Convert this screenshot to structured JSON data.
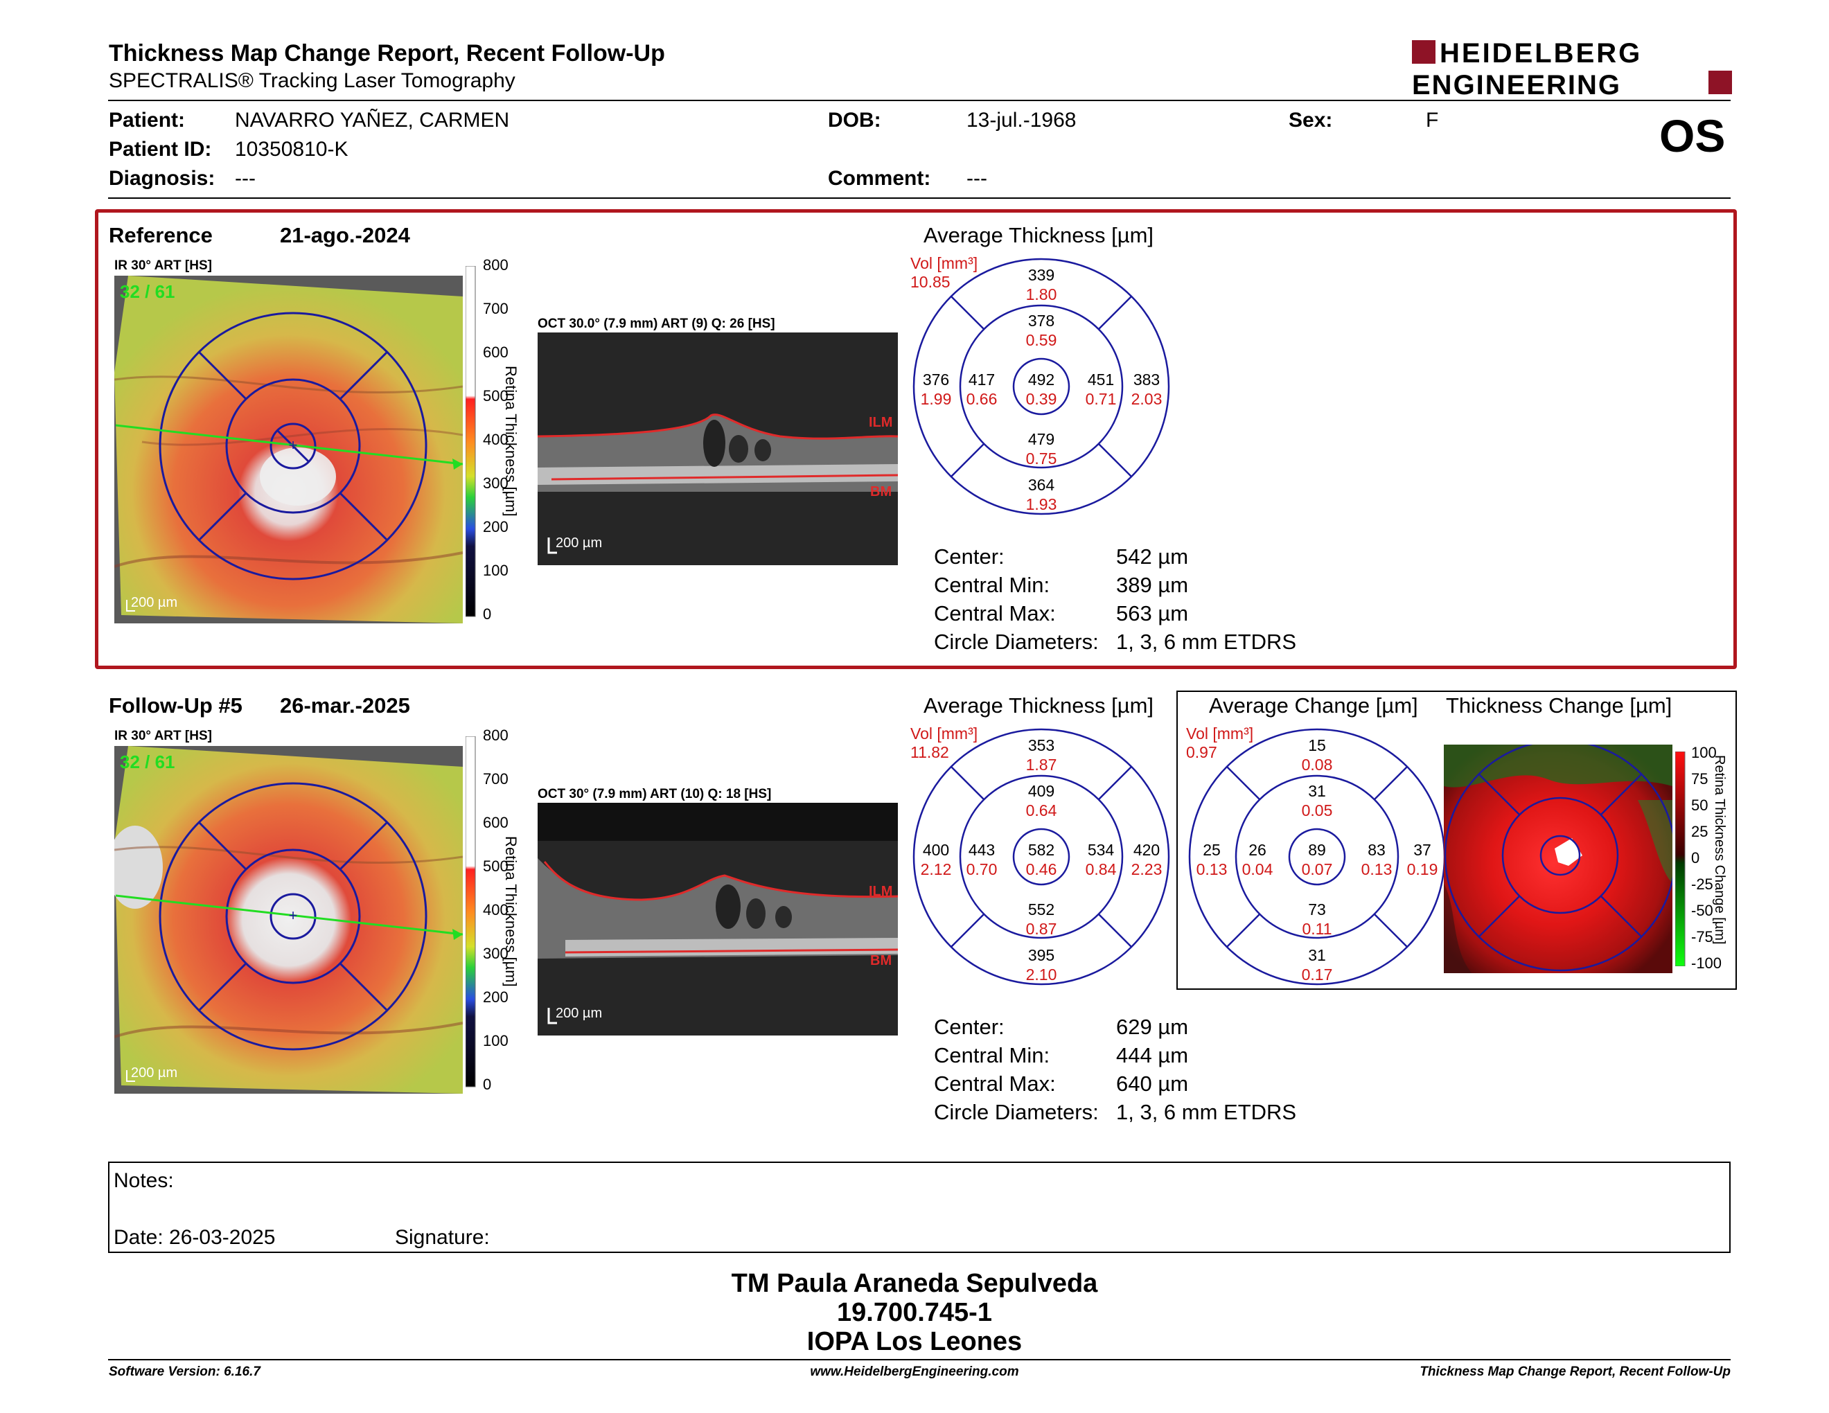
{
  "header": {
    "title": "Thickness Map Change Report, Recent Follow-Up",
    "subtitle": "SPECTRALIS® Tracking Laser Tomography",
    "logo_line1": "HEIDELBERG",
    "logo_line2": "ENGINEERING",
    "eye": "OS"
  },
  "patient": {
    "patient_label": "Patient:",
    "patient_value": "NAVARRO YAÑEZ, CARMEN",
    "id_label": "Patient ID:",
    "id_value": "10350810-K",
    "diagnosis_label": "Diagnosis:",
    "diagnosis_value": "---",
    "dob_label": "DOB:",
    "dob_value": "13-jul.-1968",
    "comment_label": "Comment:",
    "comment_value": "---",
    "sex_label": "Sex:",
    "sex_value": "F"
  },
  "reference": {
    "title": "Reference",
    "date": "21-ago.-2024",
    "ir_label": "IR 30° ART [HS]",
    "counter": "32 / 61",
    "scale": "200 µm",
    "oct_label": "OCT 30.0° (7.9 mm) ART (9) Q: 26 [HS]",
    "oct_scale": "200 µm",
    "ilm": "ILM",
    "bm": "BM",
    "grid_title": "Average Thickness [µm]",
    "vol_label": "Vol [mm³]",
    "vol_value": "10.85",
    "grid": {
      "center": [
        "492",
        "0.39"
      ],
      "inner_sup": [
        "378",
        "0.59"
      ],
      "inner_inf": [
        "479",
        "0.75"
      ],
      "inner_left": [
        "417",
        "0.66"
      ],
      "inner_right": [
        "451",
        "0.71"
      ],
      "outer_sup": [
        "339",
        "1.80"
      ],
      "outer_inf": [
        "364",
        "1.93"
      ],
      "outer_left": [
        "376",
        "1.99"
      ],
      "outer_right": [
        "383",
        "2.03"
      ]
    },
    "stats": [
      {
        "label": "Center:",
        "value": "542 µm"
      },
      {
        "label": "Central Min:",
        "value": "389 µm"
      },
      {
        "label": "Central Max:",
        "value": "563 µm"
      },
      {
        "label": "Circle Diameters:",
        "value": "1, 3, 6 mm ETDRS"
      }
    ]
  },
  "followup": {
    "title": "Follow-Up #5",
    "date": "26-mar.-2025",
    "ir_label": "IR 30° ART [HS]",
    "counter": "32 / 61",
    "scale": "200 µm",
    "oct_label": "OCT 30° (7.9 mm) ART (10) Q: 18 [HS]",
    "oct_scale": "200 µm",
    "ilm": "ILM",
    "bm": "BM",
    "grid_title": "Average Thickness [µm]",
    "vol_label": "Vol [mm³]",
    "vol_value": "11.82",
    "grid": {
      "center": [
        "582",
        "0.46"
      ],
      "inner_sup": [
        "409",
        "0.64"
      ],
      "inner_inf": [
        "552",
        "0.87"
      ],
      "inner_left": [
        "443",
        "0.70"
      ],
      "inner_right": [
        "534",
        "0.84"
      ],
      "outer_sup": [
        "353",
        "1.87"
      ],
      "outer_inf": [
        "395",
        "2.10"
      ],
      "outer_left": [
        "400",
        "2.12"
      ],
      "outer_right": [
        "420",
        "2.23"
      ]
    },
    "stats": [
      {
        "label": "Center:",
        "value": "629 µm"
      },
      {
        "label": "Central Min:",
        "value": "444 µm"
      },
      {
        "label": "Central Max:",
        "value": "640 µm"
      },
      {
        "label": "Circle Diameters:",
        "value": "1, 3, 6 mm ETDRS"
      }
    ]
  },
  "change": {
    "grid_title": "Average Change [µm]",
    "vol_label": "Vol [mm³]",
    "vol_value": "0.97",
    "grid": {
      "center": [
        "89",
        "0.07"
      ],
      "inner_sup": [
        "31",
        "0.05"
      ],
      "inner_inf": [
        "73",
        "0.11"
      ],
      "inner_left": [
        "26",
        "0.04"
      ],
      "inner_right": [
        "83",
        "0.13"
      ],
      "outer_sup": [
        "15",
        "0.08"
      ],
      "outer_inf": [
        "31",
        "0.17"
      ],
      "outer_left": [
        "25",
        "0.13"
      ],
      "outer_right": [
        "37",
        "0.19"
      ]
    },
    "map_title": "Thickness Change [µm]",
    "scale_ticks": [
      "100",
      "75",
      "50",
      "25",
      "0",
      "-25",
      "-50",
      "-75",
      "-100"
    ],
    "scale_axis": "Retina Thickness Change [µm]"
  },
  "colorbar": {
    "ticks": [
      "800",
      "700",
      "600",
      "500",
      "400",
      "300",
      "200",
      "100",
      "0"
    ],
    "axis": "Retina Thickness [µm]"
  },
  "notes": {
    "notes_label": "Notes:",
    "date_label": "Date: 26-03-2025",
    "signature_label": "Signature:"
  },
  "footer": {
    "name": "TM Paula Araneda Sepulveda",
    "rut": "19.700.745-1",
    "clinic": "IOPA Los Leones",
    "software": "Software Version: 6.16.7",
    "website": "www.HeidelbergEngineering.com",
    "report": "Thickness Map Change Report, Recent Follow-Up"
  },
  "colors": {
    "accent_red": "#b0161e",
    "grid_blue": "#1a1a9e",
    "value_red": "#d01818",
    "track_green": "#22dd22"
  }
}
